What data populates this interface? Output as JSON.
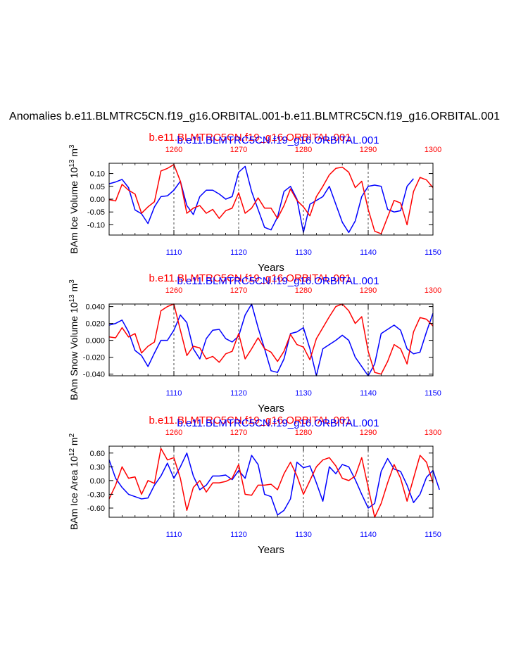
{
  "main_title": "Anomalies b.e11.BLMTRC5CN.f19_g16.ORBITAL.001-b.e11.BLMTRC5CN.f19_g16.ORBITAL.001",
  "colors": {
    "blue": "#0000ff",
    "red": "#ff0000",
    "black": "#000000"
  },
  "chart_data": [
    {
      "type": "line",
      "title_blue": "b.e11.BLMTRC5CN.f19_g16.ORBITAL.001",
      "title_red": "b.e11.BLMTRC5CN.f19_g16.ORBITAL.001",
      "ylabel": "BAm Ice Volume 10",
      "ylabel_exp": "13",
      "ylabel_unit": " m",
      "ylabel_unit_exp": "3",
      "xlabel": "Years",
      "xlim_bottom": [
        1100,
        1150
      ],
      "xlim_top": [
        1250,
        1300
      ],
      "ylim": [
        -0.14,
        0.14
      ],
      "yticks": [
        0.1,
        0.05,
        0.0,
        -0.05,
        -0.1
      ],
      "ytick_labels": [
        "0.10",
        "0.05",
        "0.00",
        "-0.05",
        "-0.10"
      ],
      "xticks_bottom": [
        1110,
        1120,
        1130,
        1140,
        1150
      ],
      "xtick_labels_bottom": [
        "1110",
        "1120",
        "1130",
        "1140",
        "1150"
      ],
      "xticks_top": [
        1260,
        1270,
        1280,
        1290,
        1300
      ],
      "xtick_labels_top": [
        "1260",
        "1270",
        "1280",
        "1290",
        "1300"
      ],
      "series": [
        {
          "name": "b.e11.BLMTRC5CN.f19_g16.ORBITAL.001",
          "color": "blue",
          "axis": "bottom",
          "x_start": 1100,
          "values": [
            0.06,
            0.067,
            0.077,
            0.045,
            -0.042,
            -0.057,
            -0.095,
            -0.03,
            0.01,
            0.013,
            0.035,
            0.07,
            -0.025,
            -0.06,
            0.01,
            0.035,
            0.035,
            0.02,
            0.0,
            0.01,
            0.105,
            0.128,
            0.03,
            -0.04,
            -0.11,
            -0.12,
            -0.07,
            0.03,
            0.05,
            0.0,
            -0.13,
            -0.02,
            -0.005,
            0.01,
            0.05,
            -0.02,
            -0.09,
            -0.13,
            -0.085,
            0.01,
            0.05,
            0.055,
            0.05,
            -0.04,
            -0.05,
            -0.045,
            0.05,
            0.08
          ]
        },
        {
          "name": "b.e11.BLMTRC5CN.f19_g16.ORBITAL.001",
          "color": "red",
          "axis": "top",
          "x_start": 1250,
          "values": [
            -0.002,
            -0.007,
            0.058,
            0.035,
            0.02,
            -0.055,
            -0.03,
            -0.01,
            0.11,
            0.12,
            0.135,
            0.07,
            -0.055,
            -0.035,
            -0.025,
            -0.055,
            -0.04,
            -0.075,
            -0.045,
            -0.035,
            0.025,
            -0.055,
            -0.035,
            0.005,
            -0.035,
            -0.035,
            -0.075,
            -0.025,
            0.04,
            -0.005,
            -0.03,
            -0.065,
            0.01,
            0.05,
            0.095,
            0.12,
            0.125,
            0.105,
            0.045,
            0.07,
            -0.04,
            -0.125,
            -0.135,
            -0.07,
            -0.005,
            -0.015,
            -0.1,
            0.03,
            0.085,
            0.075,
            0.045
          ]
        }
      ]
    },
    {
      "type": "line",
      "title_blue": "b.e11.BLMTRC5CN.f19_g16.ORBITAL.001",
      "title_red": "b.e11.BLMTRC5CN.f19_g16.ORBITAL.001",
      "ylabel": "BAm Snow Volume 10",
      "ylabel_exp": "13",
      "ylabel_unit": " m",
      "ylabel_unit_exp": "3",
      "xlabel": "Years",
      "xlim_bottom": [
        1100,
        1150
      ],
      "xlim_top": [
        1250,
        1300
      ],
      "ylim": [
        -0.042,
        0.043
      ],
      "yticks": [
        0.04,
        0.02,
        0.0,
        -0.02,
        -0.04
      ],
      "ytick_labels": [
        "0.040",
        "0.020",
        "0.000",
        "-0.020",
        "-0.040"
      ],
      "xticks_bottom": [
        1110,
        1120,
        1130,
        1140,
        1150
      ],
      "xtick_labels_bottom": [
        "1110",
        "1120",
        "1130",
        "1140",
        "1150"
      ],
      "xticks_top": [
        1260,
        1270,
        1280,
        1290,
        1300
      ],
      "xtick_labels_top": [
        "1260",
        "1270",
        "1280",
        "1290",
        "1300"
      ],
      "series": [
        {
          "name": "b.e11.BLMTRC5CN.f19_g16.ORBITAL.001",
          "color": "blue",
          "axis": "bottom",
          "x_start": 1100,
          "values": [
            0.018,
            0.02,
            0.024,
            0.01,
            -0.012,
            -0.018,
            -0.031,
            -0.015,
            0.0,
            0.0,
            0.012,
            0.03,
            0.021,
            -0.01,
            -0.022,
            0.002,
            0.012,
            0.013,
            0.002,
            -0.002,
            0.005,
            0.03,
            0.043,
            0.015,
            -0.01,
            -0.036,
            -0.038,
            -0.022,
            0.008,
            0.01,
            0.015,
            -0.01,
            -0.042,
            -0.01,
            -0.005,
            0.0,
            0.006,
            0.0,
            -0.02,
            -0.031,
            -0.042,
            -0.028,
            0.008,
            0.013,
            0.018,
            0.012,
            -0.01,
            -0.016,
            -0.014,
            0.01,
            0.032
          ]
        },
        {
          "name": "b.e11.BLMTRC5CN.f19_g16.ORBITAL.001",
          "color": "red",
          "axis": "top",
          "x_start": 1250,
          "values": [
            0.004,
            0.003,
            0.015,
            0.004,
            0.008,
            -0.015,
            -0.007,
            -0.002,
            0.035,
            0.04,
            0.043,
            0.012,
            -0.018,
            -0.007,
            -0.009,
            -0.022,
            -0.019,
            -0.026,
            -0.016,
            -0.013,
            0.008,
            -0.022,
            -0.01,
            0.003,
            -0.01,
            -0.014,
            -0.025,
            -0.013,
            0.007,
            -0.005,
            -0.008,
            -0.023,
            0.002,
            0.015,
            0.028,
            0.04,
            0.043,
            0.035,
            0.02,
            0.028,
            -0.013,
            -0.038,
            -0.04,
            -0.025,
            -0.005,
            -0.01,
            -0.028,
            0.01,
            0.027,
            0.025,
            0.017
          ]
        }
      ]
    },
    {
      "type": "line",
      "title_blue": "b.e11.BLMTRC5CN.f19_g16.ORBITAL.001",
      "title_red": "b.e11.BLMTRC5CN.f19_g16.ORBITAL.001",
      "ylabel": "BAm Ice Area 10",
      "ylabel_exp": "12",
      "ylabel_unit": " m",
      "ylabel_unit_exp": "2",
      "xlabel": "Years",
      "xlim_bottom": [
        1100,
        1150
      ],
      "xlim_top": [
        1250,
        1300
      ],
      "ylim": [
        -0.8,
        0.75
      ],
      "yticks": [
        0.6,
        0.3,
        0.0,
        -0.3,
        -0.6
      ],
      "ytick_labels": [
        "0.60",
        "0.30",
        "0.00",
        "-0.30",
        "-0.60"
      ],
      "xticks_bottom": [
        1110,
        1120,
        1130,
        1140,
        1150
      ],
      "xtick_labels_bottom": [
        "1110",
        "1120",
        "1130",
        "1140",
        "1150"
      ],
      "xticks_top": [
        1260,
        1270,
        1280,
        1290,
        1300
      ],
      "xtick_labels_top": [
        "1260",
        "1270",
        "1280",
        "1290",
        "1300"
      ],
      "series": [
        {
          "name": "b.e11.BLMTRC5CN.f19_g16.ORBITAL.001",
          "color": "blue",
          "axis": "bottom",
          "x_start": 1100,
          "values": [
            0.45,
            0.05,
            -0.15,
            -0.3,
            -0.35,
            -0.4,
            -0.38,
            -0.1,
            0.1,
            0.38,
            0.05,
            0.3,
            0.6,
            0.1,
            -0.2,
            -0.1,
            0.1,
            0.1,
            0.12,
            0.02,
            0.22,
            0.05,
            0.55,
            0.35,
            -0.3,
            -0.35,
            -0.75,
            -0.65,
            -0.4,
            0.4,
            0.28,
            0.32,
            -0.05,
            -0.45,
            0.3,
            0.15,
            0.35,
            0.3,
            0.02,
            -0.3,
            -0.6,
            -0.5,
            0.2,
            0.48,
            0.25,
            0.2,
            -0.1,
            -0.48,
            -0.3,
            0.07,
            0.22,
            -0.2
          ]
        },
        {
          "name": "b.e11.BLMTRC5CN.f19_g16.ORBITAL.001",
          "color": "red",
          "axis": "top",
          "x_start": 1250,
          "values": [
            -0.4,
            -0.1,
            0.3,
            0.05,
            0.08,
            -0.3,
            0.0,
            -0.06,
            0.7,
            0.45,
            0.5,
            0.05,
            -0.65,
            -0.15,
            0.0,
            -0.25,
            -0.05,
            -0.05,
            -0.02,
            0.05,
            0.35,
            -0.3,
            -0.32,
            -0.1,
            -0.1,
            -0.08,
            -0.2,
            0.15,
            0.4,
            0.1,
            -0.3,
            0.0,
            0.3,
            0.45,
            0.5,
            0.32,
            0.05,
            0.0,
            0.1,
            0.5,
            -0.15,
            -0.8,
            -0.5,
            -0.05,
            0.35,
            0.05,
            -0.45,
            0.05,
            0.55,
            0.4,
            -0.05
          ]
        }
      ]
    }
  ]
}
